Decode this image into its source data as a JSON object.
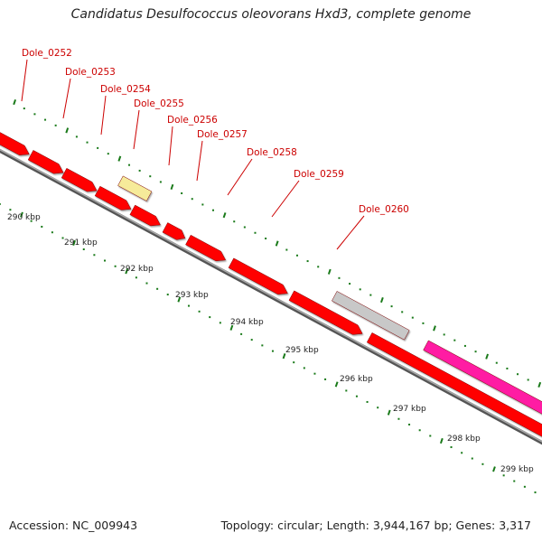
{
  "title": "Candidatus Desulfococcus oleovorans Hxd3, complete genome",
  "footer": {
    "accession": "Accession: NC_009943",
    "summary": "Topology: circular; Length: 3,944,167 bp; Genes: 3,317"
  },
  "colors": {
    "cds": "#ff0000",
    "highlight": "#f6eb9a",
    "gray_feature": "#c8c8c8",
    "pink_feature": "#ff1aa3",
    "backbone": "#808080",
    "tick": "#1a7a1a",
    "label": "#cc0000"
  },
  "gene_labels": [
    "Dole_0252",
    "Dole_0253",
    "Dole_0254",
    "Dole_0255",
    "Dole_0256",
    "Dole_0257",
    "Dole_0258",
    "Dole_0259",
    "Dole_0260"
  ],
  "kbp_labels": [
    "290 kbp",
    "291 kbp",
    "292 kbp",
    "293 kbp",
    "294 kbp",
    "295 kbp",
    "296 kbp",
    "297 kbp",
    "298 kbp",
    "299 kbp"
  ]
}
